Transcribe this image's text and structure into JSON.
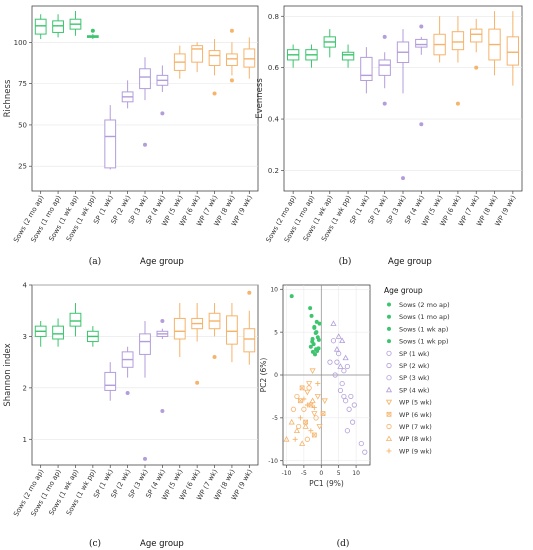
{
  "colors": {
    "sows": "#3cc46e",
    "sp": "#b39ddb",
    "wp": "#f5b36b",
    "axis": "#444444",
    "grid": "#e6e6e6"
  },
  "categories": [
    "Sows (2 mo ap)",
    "Sows (1 mo ap)",
    "Sows (1 wk ap)",
    "Sows (1 wk pp)",
    "SP (1 wk)",
    "SP (2 wk)",
    "SP (3 wk)",
    "SP (4 wk)",
    "WP (5 wk)",
    "WP (6 wk)",
    "WP (7 wk)",
    "WP (8 wk)",
    "WP (9 wk)"
  ],
  "groups": [
    "sows",
    "sows",
    "sows",
    "sows",
    "sp",
    "sp",
    "sp",
    "sp",
    "wp",
    "wp",
    "wp",
    "wp",
    "wp"
  ],
  "chart_data": [
    {
      "id": "a",
      "type": "box",
      "panel_label": "(a)",
      "xlabel": "Age group",
      "ylabel": "Richness",
      "ylim": [
        10,
        122
      ],
      "yticks": [
        25,
        50,
        75,
        100
      ],
      "boxes": [
        {
          "min": 102,
          "q1": 105,
          "median": 110,
          "q3": 114,
          "max": 117,
          "outliers": []
        },
        {
          "min": 103,
          "q1": 106,
          "median": 110,
          "q3": 113,
          "max": 117,
          "outliers": []
        },
        {
          "min": 104,
          "q1": 108,
          "median": 111,
          "q3": 114,
          "max": 119,
          "outliers": []
        },
        {
          "min": 102,
          "q1": 103,
          "median": 103.5,
          "q3": 104,
          "max": 105,
          "outliers": [
            107
          ]
        },
        {
          "min": 23,
          "q1": 24,
          "median": 43,
          "q3": 53,
          "max": 62,
          "outliers": []
        },
        {
          "min": 60,
          "q1": 64,
          "median": 67,
          "q3": 70,
          "max": 77,
          "outliers": []
        },
        {
          "min": 65,
          "q1": 72,
          "median": 79,
          "q3": 84,
          "max": 91,
          "outliers": [
            38
          ]
        },
        {
          "min": 70,
          "q1": 74,
          "median": 77,
          "q3": 80,
          "max": 86,
          "outliers": [
            57
          ]
        },
        {
          "min": 78,
          "q1": 83,
          "median": 88,
          "q3": 93,
          "max": 98,
          "outliers": []
        },
        {
          "min": 82,
          "q1": 88,
          "median": 96,
          "q3": 98,
          "max": 100,
          "outliers": []
        },
        {
          "min": 80,
          "q1": 86,
          "median": 92,
          "q3": 95,
          "max": 102,
          "outliers": [
            69
          ]
        },
        {
          "min": 80,
          "q1": 86,
          "median": 90,
          "q3": 93,
          "max": 100,
          "outliers": [
            107,
            77
          ]
        },
        {
          "min": 78,
          "q1": 85,
          "median": 90,
          "q3": 96,
          "max": 103,
          "outliers": []
        }
      ]
    },
    {
      "id": "b",
      "type": "box",
      "panel_label": "(b)",
      "xlabel": "Age group",
      "ylabel": "Evenness",
      "ylim": [
        0.12,
        0.84
      ],
      "yticks": [
        0.2,
        0.4,
        0.6,
        0.8
      ],
      "boxes": [
        {
          "min": 0.6,
          "q1": 0.63,
          "median": 0.65,
          "q3": 0.67,
          "max": 0.69,
          "outliers": []
        },
        {
          "min": 0.6,
          "q1": 0.63,
          "median": 0.65,
          "q3": 0.67,
          "max": 0.69,
          "outliers": []
        },
        {
          "min": 0.64,
          "q1": 0.68,
          "median": 0.7,
          "q3": 0.72,
          "max": 0.75,
          "outliers": []
        },
        {
          "min": 0.6,
          "q1": 0.63,
          "median": 0.65,
          "q3": 0.66,
          "max": 0.69,
          "outliers": []
        },
        {
          "min": 0.5,
          "q1": 0.55,
          "median": 0.57,
          "q3": 0.64,
          "max": 0.68,
          "outliers": []
        },
        {
          "min": 0.52,
          "q1": 0.57,
          "median": 0.61,
          "q3": 0.63,
          "max": 0.66,
          "outliers": [
            0.72,
            0.46
          ]
        },
        {
          "min": 0.5,
          "q1": 0.62,
          "median": 0.66,
          "q3": 0.7,
          "max": 0.75,
          "outliers": [
            0.17
          ]
        },
        {
          "min": 0.65,
          "q1": 0.68,
          "median": 0.69,
          "q3": 0.71,
          "max": 0.72,
          "outliers": [
            0.76,
            0.38
          ]
        },
        {
          "min": 0.62,
          "q1": 0.65,
          "median": 0.69,
          "q3": 0.73,
          "max": 0.8,
          "outliers": []
        },
        {
          "min": 0.62,
          "q1": 0.67,
          "median": 0.7,
          "q3": 0.74,
          "max": 0.8,
          "outliers": [
            0.46
          ]
        },
        {
          "min": 0.66,
          "q1": 0.7,
          "median": 0.73,
          "q3": 0.75,
          "max": 0.79,
          "outliers": [
            0.6
          ]
        },
        {
          "min": 0.57,
          "q1": 0.63,
          "median": 0.69,
          "q3": 0.75,
          "max": 0.82,
          "outliers": []
        },
        {
          "min": 0.53,
          "q1": 0.61,
          "median": 0.66,
          "q3": 0.72,
          "max": 0.82,
          "outliers": []
        }
      ]
    },
    {
      "id": "c",
      "type": "box",
      "panel_label": "(c)",
      "xlabel": "Age group",
      "ylabel": "Shannon index",
      "ylim": [
        0.5,
        4.0
      ],
      "yticks": [
        1,
        2,
        3,
        4
      ],
      "boxes": [
        {
          "min": 2.8,
          "q1": 3.0,
          "median": 3.1,
          "q3": 3.2,
          "max": 3.3,
          "outliers": []
        },
        {
          "min": 2.8,
          "q1": 2.95,
          "median": 3.05,
          "q3": 3.2,
          "max": 3.35,
          "outliers": []
        },
        {
          "min": 3.0,
          "q1": 3.2,
          "median": 3.3,
          "q3": 3.45,
          "max": 3.65,
          "outliers": []
        },
        {
          "min": 2.8,
          "q1": 2.9,
          "median": 3.0,
          "q3": 3.1,
          "max": 3.2,
          "outliers": []
        },
        {
          "min": 1.75,
          "q1": 1.95,
          "median": 2.05,
          "q3": 2.3,
          "max": 2.5,
          "outliers": []
        },
        {
          "min": 2.2,
          "q1": 2.4,
          "median": 2.55,
          "q3": 2.7,
          "max": 2.8,
          "outliers": [
            1.9
          ]
        },
        {
          "min": 2.2,
          "q1": 2.65,
          "median": 2.9,
          "q3": 3.05,
          "max": 3.3,
          "outliers": [
            0.62
          ]
        },
        {
          "min": 2.95,
          "q1": 3.0,
          "median": 3.05,
          "q3": 3.1,
          "max": 3.15,
          "outliers": [
            3.3,
            1.55
          ]
        },
        {
          "min": 2.6,
          "q1": 2.95,
          "median": 3.1,
          "q3": 3.35,
          "max": 3.65,
          "outliers": []
        },
        {
          "min": 2.9,
          "q1": 3.15,
          "median": 3.25,
          "q3": 3.35,
          "max": 3.65,
          "outliers": [
            2.1
          ]
        },
        {
          "min": 3.0,
          "q1": 3.15,
          "median": 3.3,
          "q3": 3.45,
          "max": 3.65,
          "outliers": [
            2.6
          ]
        },
        {
          "min": 2.5,
          "q1": 2.85,
          "median": 3.1,
          "q3": 3.4,
          "max": 3.65,
          "outliers": []
        },
        {
          "min": 2.45,
          "q1": 2.7,
          "median": 2.95,
          "q3": 3.15,
          "max": 3.5,
          "outliers": [
            3.85
          ]
        }
      ]
    },
    {
      "id": "d",
      "type": "scatter",
      "panel_label": "(d)",
      "xlabel": "PC1 (9%)",
      "ylabel": "PC2 (6%)",
      "xlim": [
        -11,
        14
      ],
      "ylim": [
        -10.5,
        10.5
      ],
      "xticks": [
        -10,
        -5,
        0,
        5,
        10
      ],
      "yticks": [
        -10,
        -5,
        0,
        5,
        10
      ],
      "legend_title": "Age group",
      "series": [
        {
          "name": "Sows (2 mo ap)",
          "group": "sows",
          "marker": "dot",
          "points": [
            [
              -8.5,
              9.2
            ],
            [
              -3.2,
              7.8
            ],
            [
              -2.5,
              4.2
            ],
            [
              -1.5,
              3.0
            ],
            [
              -2.0,
              5.5
            ]
          ]
        },
        {
          "name": "Sows (1 mo ap)",
          "group": "sows",
          "marker": "dot",
          "points": [
            [
              -2.8,
              6.9
            ],
            [
              -2.2,
              3.6
            ],
            [
              -1.3,
              6.2
            ],
            [
              -1.8,
              2.4
            ],
            [
              -0.8,
              3.1
            ]
          ]
        },
        {
          "name": "Sows (1 wk ap)",
          "group": "sows",
          "marker": "dot",
          "points": [
            [
              -2.0,
              5.6
            ],
            [
              -1.0,
              4.4
            ],
            [
              -3.0,
              3.3
            ],
            [
              -1.4,
              5.0
            ],
            [
              -2.4,
              2.7
            ]
          ]
        },
        {
          "name": "Sows (1 wk pp)",
          "group": "sows",
          "marker": "dot",
          "points": [
            [
              -1.6,
              4.9
            ],
            [
              -0.7,
              4.1
            ],
            [
              -2.6,
              3.9
            ],
            [
              -1.2,
              2.8
            ],
            [
              -0.5,
              6.0
            ]
          ]
        },
        {
          "name": "SP (1 wk)",
          "group": "sp",
          "marker": "circle",
          "points": [
            [
              6.5,
              -2.5
            ],
            [
              8.0,
              -4.0
            ],
            [
              11.5,
              -8.0
            ],
            [
              9.0,
              -5.5
            ],
            [
              12.5,
              -9.0
            ],
            [
              7.5,
              -6.5
            ]
          ]
        },
        {
          "name": "SP (2 wk)",
          "group": "sp",
          "marker": "circle",
          "points": [
            [
              4.5,
              1.5
            ],
            [
              6.0,
              -1.0
            ],
            [
              7.0,
              -3.0
            ],
            [
              5.5,
              -1.8
            ],
            [
              8.5,
              -2.5
            ],
            [
              9.5,
              -3.5
            ]
          ]
        },
        {
          "name": "SP (3 wk)",
          "group": "sp",
          "marker": "circle",
          "points": [
            [
              3.5,
              4.0
            ],
            [
              5.0,
              2.5
            ],
            [
              6.5,
              0.5
            ],
            [
              4.0,
              0.0
            ],
            [
              2.5,
              1.5
            ],
            [
              7.5,
              1.0
            ]
          ]
        },
        {
          "name": "SP (4 wk)",
          "group": "sp",
          "marker": "triangle-up",
          "points": [
            [
              4.5,
              3.0
            ],
            [
              6.0,
              4.0
            ],
            [
              5.5,
              1.0
            ],
            [
              7.0,
              2.0
            ],
            [
              3.5,
              6.0
            ],
            [
              5.0,
              4.5
            ]
          ]
        },
        {
          "name": "WP (5 wk)",
          "group": "wp",
          "marker": "triangle-down",
          "points": [
            [
              -3.5,
              -1.0
            ],
            [
              -2.0,
              -4.5
            ],
            [
              -1.0,
              -2.5
            ],
            [
              -4.0,
              -2.0
            ],
            [
              -0.5,
              -6.0
            ],
            [
              1.0,
              -3.0
            ],
            [
              -2.5,
              0.5
            ]
          ]
        },
        {
          "name": "WP (6 wk)",
          "group": "wp",
          "marker": "square-x",
          "points": [
            [
              -6.0,
              -3.0
            ],
            [
              -4.5,
              -5.5
            ],
            [
              -3.0,
              -3.5
            ],
            [
              -5.5,
              -1.5
            ],
            [
              -2.0,
              -7.0
            ],
            [
              0.5,
              -4.5
            ]
          ]
        },
        {
          "name": "WP (7 wk)",
          "group": "wp",
          "marker": "circle",
          "points": [
            [
              -8.0,
              -4.0
            ],
            [
              -7.0,
              -2.5
            ],
            [
              -6.5,
              -6.0
            ],
            [
              -5.0,
              -4.0
            ],
            [
              -3.5,
              -1.5
            ],
            [
              -1.5,
              -5.0
            ],
            [
              -4.0,
              -7.5
            ]
          ]
        },
        {
          "name": "WP (8 wk)",
          "group": "wp",
          "marker": "triangle-up",
          "points": [
            [
              -10.0,
              -7.5
            ],
            [
              -8.5,
              -5.5
            ],
            [
              -7.0,
              -6.5
            ],
            [
              -5.5,
              -8.0
            ],
            [
              -2.5,
              -3.0
            ],
            [
              -4.5,
              -6.0
            ]
          ]
        },
        {
          "name": "WP (9 wk)",
          "group": "wp",
          "marker": "plus",
          "points": [
            [
              -7.5,
              -7.5
            ],
            [
              -6.0,
              -5.0
            ],
            [
              -4.0,
              -3.5
            ],
            [
              -3.0,
              -6.5
            ],
            [
              -1.0,
              -1.0
            ],
            [
              -2.0,
              -3.8
            ],
            [
              -5.0,
              -2.8
            ]
          ]
        }
      ]
    }
  ]
}
